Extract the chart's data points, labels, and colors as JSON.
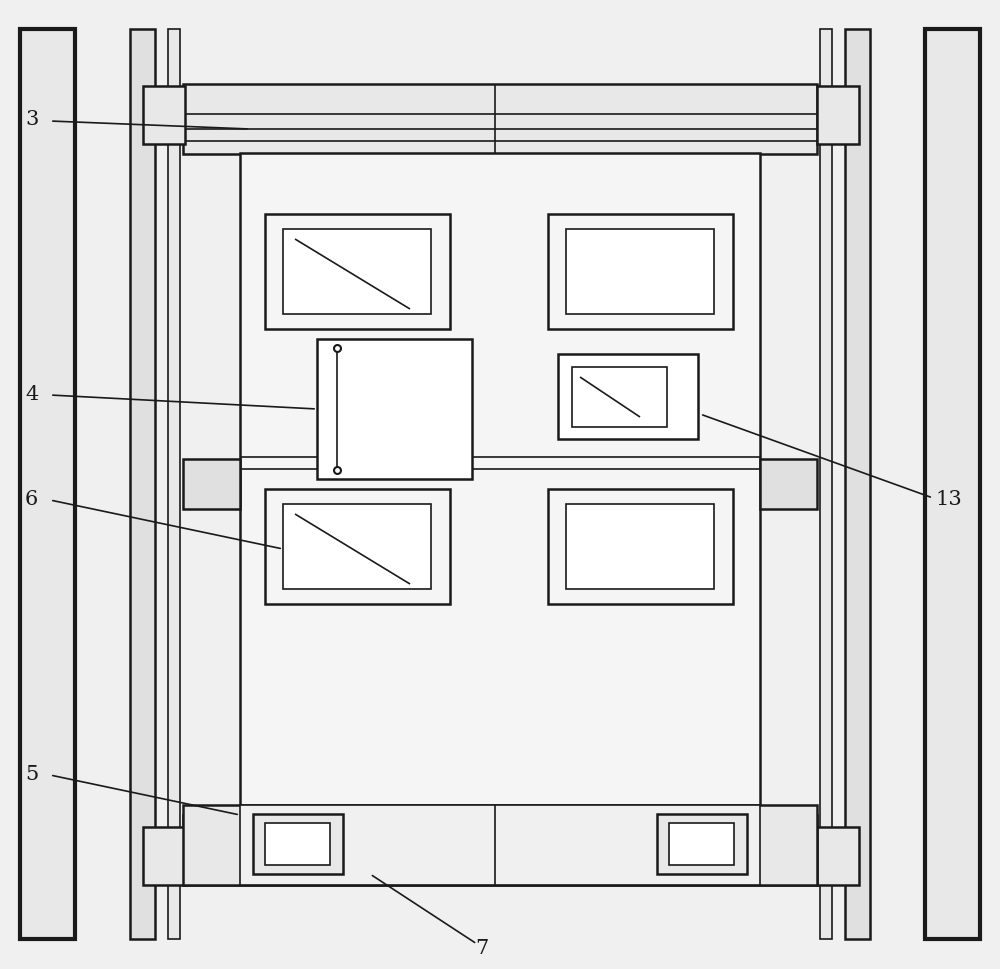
{
  "bg_color": "#f0f0f0",
  "line_color": "#1a1a1a",
  "fill_color": "#ffffff",
  "lw_thin": 1.2,
  "lw_med": 1.8,
  "lw_thick": 3.0
}
